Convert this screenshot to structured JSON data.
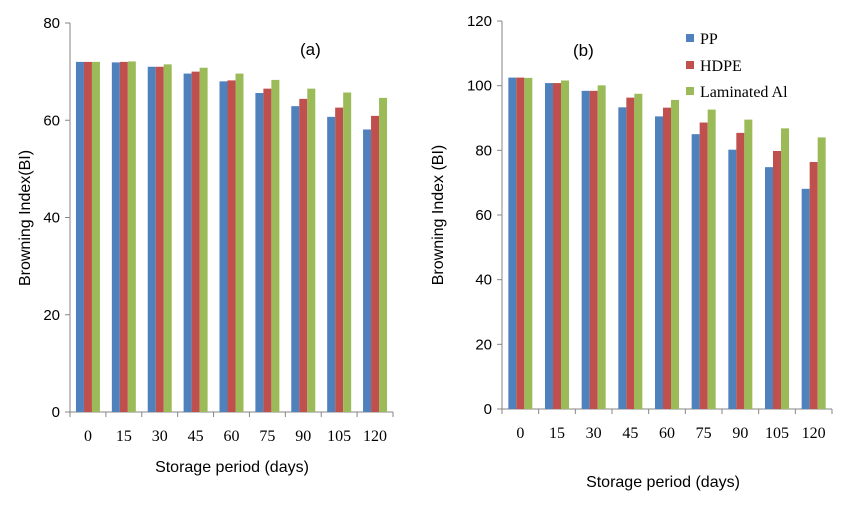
{
  "colors": {
    "PP": "#4F81BD",
    "HDPE": "#C0504D",
    "Laminated Al": "#9BBB59"
  },
  "legend": [
    "PP",
    "HDPE",
    "Laminated Al"
  ],
  "chart_data": [
    {
      "type": "bar",
      "panel_label": "(a)",
      "categories": [
        "0",
        "15",
        "30",
        "45",
        "60",
        "75",
        "90",
        "105",
        "120"
      ],
      "series": [
        {
          "name": "PP",
          "values": [
            72.0,
            71.9,
            71.0,
            69.6,
            68.0,
            65.6,
            62.9,
            60.7,
            58.1
          ]
        },
        {
          "name": "HDPE",
          "values": [
            72.0,
            72.0,
            71.0,
            70.0,
            68.2,
            66.5,
            64.4,
            62.6,
            60.9
          ]
        },
        {
          "name": "Laminated Al",
          "values": [
            72.0,
            72.1,
            71.5,
            70.8,
            69.6,
            68.3,
            66.5,
            65.7,
            64.6
          ]
        }
      ],
      "xlabel": "Storage period (days)",
      "ylabel": "Browning Index(BI)",
      "ylim": [
        0,
        80
      ],
      "yticks": [
        "0",
        "20",
        "40",
        "60",
        "80"
      ],
      "grid": false,
      "legend_position": "none"
    },
    {
      "type": "bar",
      "panel_label": "(b)",
      "categories": [
        "0",
        "15",
        "30",
        "45",
        "60",
        "75",
        "90",
        "105",
        "120"
      ],
      "series": [
        {
          "name": "PP",
          "values": [
            102.5,
            100.8,
            98.4,
            93.3,
            90.5,
            85.0,
            80.2,
            74.8,
            68.1
          ]
        },
        {
          "name": "HDPE",
          "values": [
            102.5,
            100.8,
            98.4,
            96.3,
            93.2,
            88.6,
            85.4,
            79.8,
            76.4
          ]
        },
        {
          "name": "Laminated Al",
          "values": [
            102.4,
            101.6,
            100.1,
            97.5,
            95.6,
            92.6,
            89.5,
            86.8,
            84.0
          ]
        }
      ],
      "xlabel": "Storage period (days)",
      "ylabel": "Browning Index (BI)",
      "ylim": [
        0,
        120
      ],
      "yticks": [
        "0",
        "20",
        "40",
        "60",
        "80",
        "100",
        "120"
      ],
      "grid": false,
      "legend_position": "top-right"
    }
  ]
}
